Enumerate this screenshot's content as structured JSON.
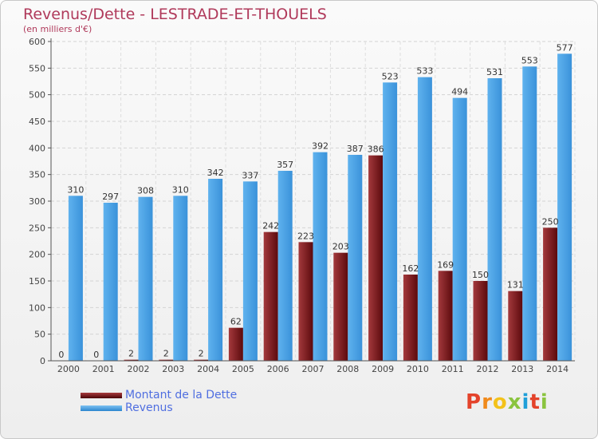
{
  "title": "Revenus/Dette - LESTRADE-ET-THOUELS",
  "subtitle": "(en milliers d'€)",
  "logo": "Proxiti",
  "colors": {
    "debt": "#7a1418",
    "revenue": "#4da4e8",
    "title": "#b03a5b",
    "legend_text": "#4f6ee0"
  },
  "chart_data": {
    "type": "bar",
    "title": "Revenus/Dette - LESTRADE-ET-THOUELS",
    "ylabel": "(en milliers d'€)",
    "categories": [
      "2000",
      "2001",
      "2002",
      "2003",
      "2004",
      "2005",
      "2006",
      "2007",
      "2008",
      "2009",
      "2010",
      "2011",
      "2012",
      "2013",
      "2014"
    ],
    "series": [
      {
        "name": "Montant de la Dette",
        "color": "#7a1418",
        "values": [
          0,
          0,
          2,
          2,
          2,
          62,
          242,
          223,
          203,
          386,
          162,
          169,
          150,
          131,
          250
        ]
      },
      {
        "name": "Revenus",
        "color": "#4da4e8",
        "values": [
          310,
          297,
          308,
          310,
          342,
          337,
          357,
          392,
          387,
          523,
          533,
          494,
          531,
          553,
          577
        ]
      }
    ],
    "ylim": [
      0,
      600
    ],
    "yticks": [
      0,
      50,
      100,
      150,
      200,
      250,
      300,
      350,
      400,
      450,
      500,
      550,
      600
    ],
    "grid": true,
    "legend": "bottom-left"
  }
}
